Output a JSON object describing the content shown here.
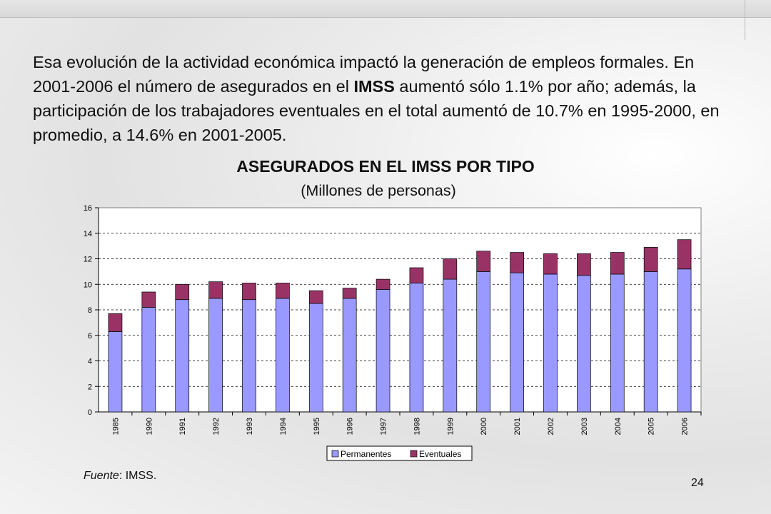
{
  "intro": {
    "part1": "Esa evolución de la actividad económica impactó la generación de empleos formales. En 2001-2006 el número de asegurados en el ",
    "bold": "IMSS",
    "part2": " aumentó sólo 1.1% por año; además, la participación de los trabajadores eventuales en el total aumentó de 10.7% en 1995-2000, en promedio, a 14.6% en 2001-2005."
  },
  "source": {
    "label": "Fuente",
    "text": ": IMSS."
  },
  "page_number": "24",
  "colors": {
    "permanentes": "#9999FF",
    "eventuales": "#993366"
  },
  "chart_data": {
    "type": "bar",
    "stacked": true,
    "title": "ASEGURADOS EN EL IMSS POR TIPO",
    "subtitle": "(Millones de personas)",
    "categories": [
      "1985",
      "1990",
      "1991",
      "1992",
      "1993",
      "1994",
      "1995",
      "1996",
      "1997",
      "1998",
      "1999",
      "2000",
      "2001",
      "2002",
      "2003",
      "2004",
      "2005",
      "2006"
    ],
    "series": [
      {
        "name": "Permanentes",
        "values": [
          6.3,
          8.2,
          8.8,
          8.9,
          8.8,
          8.9,
          8.5,
          8.9,
          9.6,
          10.1,
          10.4,
          11.0,
          10.9,
          10.8,
          10.7,
          10.8,
          11.0,
          11.2
        ]
      },
      {
        "name": "Eventuales",
        "values": [
          1.4,
          1.2,
          1.2,
          1.3,
          1.3,
          1.2,
          1.0,
          0.8,
          0.8,
          1.2,
          1.6,
          1.6,
          1.6,
          1.6,
          1.7,
          1.7,
          1.9,
          2.3
        ]
      }
    ],
    "ylim": [
      0,
      16
    ],
    "yticks": [
      0,
      2,
      4,
      6,
      8,
      10,
      12,
      14,
      16
    ],
    "grid": true,
    "legend_position": "bottom"
  }
}
